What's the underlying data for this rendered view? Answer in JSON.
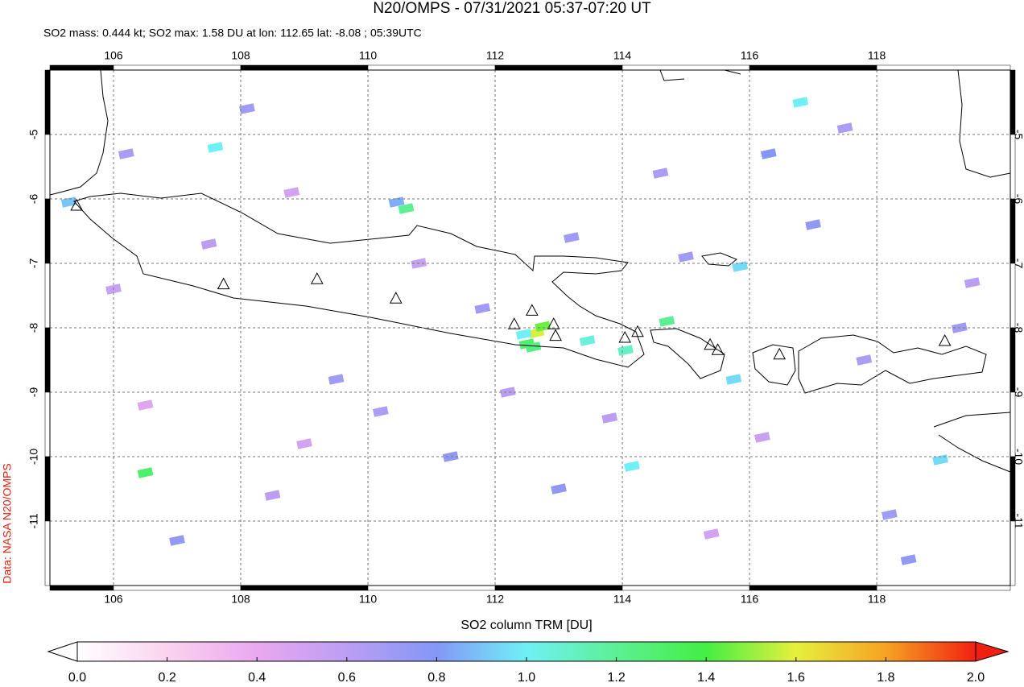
{
  "chart_data": {
    "type": "map",
    "title": "N20/OMPS - 07/31/2021 05:37-07:20 UT",
    "subtitle": "SO2 mass: 0.444 kt; SO2 max: 1.58 DU at lon: 112.65 lat: -8.08 ; 05:39UTC",
    "credit": "Data: NASA N20/OMPS",
    "colorbar_label": "SO2 column TRM [DU]",
    "xlim": [
      105.0,
      120.1
    ],
    "ylim": [
      -12.0,
      -4.0
    ],
    "xticks": [
      106,
      108,
      110,
      112,
      114,
      116,
      118
    ],
    "yticks": [
      -5,
      -6,
      -7,
      -8,
      -9,
      -10,
      -11
    ],
    "grid": true,
    "clim": [
      0,
      2
    ],
    "cticks": [
      {
        "value": 0,
        "label": "0.0"
      },
      {
        "value": 0.2,
        "label": "0.2"
      },
      {
        "value": 0.4,
        "label": "0.4"
      },
      {
        "value": 0.6,
        "label": "0.6"
      },
      {
        "value": 0.8,
        "label": "0.8"
      },
      {
        "value": 1.0,
        "label": "1.0"
      },
      {
        "value": 1.2,
        "label": "1.2"
      },
      {
        "value": 1.4,
        "label": "1.4"
      },
      {
        "value": 1.6,
        "label": "1.6"
      },
      {
        "value": 1.8,
        "label": "1.8"
      },
      {
        "value": 2.0,
        "label": "2.0"
      }
    ],
    "colormap": [
      "#ffffff",
      "#fbd3ee",
      "#eaa8f0",
      "#bb9ef2",
      "#8497f6",
      "#70f0f6",
      "#5cf094",
      "#44ee44",
      "#e6f03c",
      "#f7a224",
      "#f02010"
    ],
    "pixels": {
      "lon": [
        112.65,
        112.5,
        112.75,
        112.45,
        112.6,
        106.5,
        107.6,
        110.6,
        110.45,
        105.3,
        114.7,
        113.45,
        114.05,
        115.85,
        116.8,
        114.15,
        115.75,
        119.0,
        116.3,
        117.0,
        108.1,
        106.2,
        107.5,
        109.5,
        110.2,
        111.3,
        113.2,
        113.8,
        115.0,
        117.8,
        118.5,
        106.0,
        108.5,
        111.8,
        113.0,
        114.6,
        116.2,
        118.2,
        119.5,
        107.0,
        109.0,
        110.8,
        112.2,
        115.4,
        117.5,
        119.3,
        106.5,
        108.8
      ],
      "lat": [
        -8.08,
        -8.25,
        -7.98,
        -8.1,
        -8.3,
        -10.25,
        -5.2,
        -6.15,
        -6.05,
        -6.05,
        -7.9,
        -8.2,
        -8.35,
        -7.05,
        -4.5,
        -10.15,
        -8.8,
        -10.05,
        -5.3,
        -6.4,
        -4.6,
        -5.3,
        -6.7,
        -8.8,
        -9.3,
        -10.0,
        -6.6,
        -9.4,
        -6.9,
        -8.5,
        -11.6,
        -7.4,
        -10.6,
        -7.7,
        -10.5,
        -5.6,
        -9.7,
        -10.9,
        -7.3,
        -11.3,
        -9.8,
        -7.0,
        -9.0,
        -11.2,
        -4.9,
        -8.0,
        -9.2,
        -5.9
      ],
      "values": [
        1.58,
        1.3,
        1.45,
        1.0,
        1.25,
        1.3,
        1.0,
        1.2,
        0.85,
        0.9,
        1.2,
        1.05,
        1.1,
        0.95,
        1.0,
        1.0,
        0.95,
        0.95,
        0.8,
        0.75,
        0.7,
        0.65,
        0.6,
        0.7,
        0.65,
        0.75,
        0.7,
        0.6,
        0.7,
        0.65,
        0.75,
        0.55,
        0.6,
        0.7,
        0.75,
        0.65,
        0.55,
        0.7,
        0.6,
        0.75,
        0.5,
        0.55,
        0.6,
        0.5,
        0.65,
        0.7,
        0.45,
        0.5
      ]
    },
    "volcanoes": {
      "lon": [
        105.42,
        107.73,
        109.2,
        110.44,
        112.3,
        112.58,
        112.92,
        112.95,
        114.04,
        114.24,
        115.38,
        115.5,
        116.47,
        119.07
      ],
      "lat": [
        -6.1,
        -7.32,
        -7.24,
        -7.54,
        -7.94,
        -7.73,
        -7.94,
        -8.12,
        -8.15,
        -8.06,
        -8.26,
        -8.34,
        -8.41,
        -8.2
      ]
    }
  }
}
